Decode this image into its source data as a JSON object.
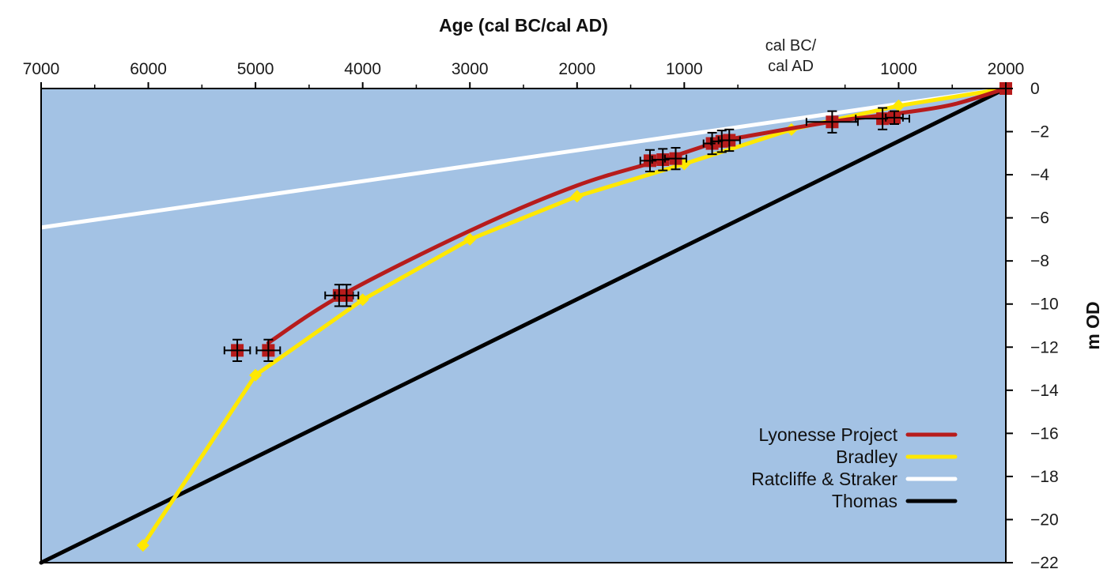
{
  "chart_data": {
    "type": "line",
    "xlabel": "Age (cal BC/cal AD)",
    "ylabel": "m OD",
    "era_label_line1": "cal BC/",
    "era_label_line2": "cal AD",
    "x_axis_position": "top",
    "y_axis_position": "right",
    "xlim": [
      -7000,
      2000
    ],
    "ylim": [
      -22,
      0
    ],
    "x_ticks": [
      {
        "value": -7000,
        "label": "7000"
      },
      {
        "value": -6000,
        "label": "6000"
      },
      {
        "value": -5000,
        "label": "5000"
      },
      {
        "value": -4000,
        "label": "4000"
      },
      {
        "value": -3000,
        "label": "3000"
      },
      {
        "value": -2000,
        "label": "2000"
      },
      {
        "value": -1000,
        "label": "1000"
      },
      {
        "value": 1000,
        "label": "1000"
      },
      {
        "value": 2000,
        "label": "2000"
      }
    ],
    "y_ticks": [
      {
        "value": 0,
        "label": "0"
      },
      {
        "value": -2,
        "label": "−2"
      },
      {
        "value": -4,
        "label": "−4"
      },
      {
        "value": -6,
        "label": "−6"
      },
      {
        "value": -8,
        "label": "−8"
      },
      {
        "value": -10,
        "label": "−10"
      },
      {
        "value": -12,
        "label": "−12"
      },
      {
        "value": -14,
        "label": "−14"
      },
      {
        "value": -16,
        "label": "−16"
      },
      {
        "value": -18,
        "label": "−18"
      },
      {
        "value": -20,
        "label": "−20"
      },
      {
        "value": -22,
        "label": "−22"
      }
    ],
    "grid": false,
    "legend_position": "bottom-right",
    "colors": {
      "plot_background": "#a3c2e4",
      "lyonesse": "#b71c1c",
      "bradley": "#ffe800",
      "ratcliffe": "#ffffff",
      "thomas": "#000000",
      "error_bars": "#000000"
    },
    "series": [
      {
        "name": "Lyonesse Project",
        "color": "#b71c1c",
        "marker": "square",
        "curve": [
          {
            "x": -4880,
            "y": -11.8
          },
          {
            "x": -4200,
            "y": -9.6
          },
          {
            "x": -3000,
            "y": -6.6
          },
          {
            "x": -2000,
            "y": -4.5
          },
          {
            "x": -1200,
            "y": -3.3
          },
          {
            "x": -700,
            "y": -2.5
          },
          {
            "x": -400,
            "y": -2.2
          },
          {
            "x": 0,
            "y": -1.85
          },
          {
            "x": 500,
            "y": -1.45
          },
          {
            "x": 1000,
            "y": -1.15
          },
          {
            "x": 1500,
            "y": -0.75
          },
          {
            "x": 2000,
            "y": 0
          }
        ],
        "points": [
          {
            "x": -5170,
            "y": -12.15,
            "x_err": 120,
            "y_err": 0.5
          },
          {
            "x": -4880,
            "y": -12.15,
            "x_err": 110,
            "y_err": 0.5
          },
          {
            "x": -4220,
            "y": -9.6,
            "x_err": 130,
            "y_err": 0.5
          },
          {
            "x": -4150,
            "y": -9.6,
            "x_err": 110,
            "y_err": 0.5
          },
          {
            "x": -1320,
            "y": -3.35,
            "x_err": 90,
            "y_err": 0.5
          },
          {
            "x": -1200,
            "y": -3.3,
            "x_err": 100,
            "y_err": 0.5
          },
          {
            "x": -1080,
            "y": -3.25,
            "x_err": 100,
            "y_err": 0.5
          },
          {
            "x": -740,
            "y": -2.55,
            "x_err": 80,
            "y_err": 0.5
          },
          {
            "x": -650,
            "y": -2.45,
            "x_err": 100,
            "y_err": 0.5
          },
          {
            "x": -580,
            "y": -2.4,
            "x_err": 100,
            "y_err": 0.5
          },
          {
            "x": 380,
            "y": -1.55,
            "x_err": 240,
            "y_err": 0.5
          },
          {
            "x": 850,
            "y": -1.4,
            "x_err": 250,
            "y_err": 0.5
          },
          {
            "x": 960,
            "y": -1.35,
            "x_err": 80,
            "y_err": 0.3
          },
          {
            "x": 2000,
            "y": 0,
            "x_err": 0,
            "y_err": 0
          }
        ]
      },
      {
        "name": "Bradley",
        "color": "#ffe800",
        "marker": "diamond",
        "points": [
          {
            "x": -6050,
            "y": -21.2
          },
          {
            "x": -5000,
            "y": -13.3
          },
          {
            "x": -4000,
            "y": -9.8
          },
          {
            "x": -3000,
            "y": -7.0
          },
          {
            "x": -2000,
            "y": -5.0
          },
          {
            "x": -1000,
            "y": -3.5
          },
          {
            "x": 0,
            "y": -1.9
          },
          {
            "x": 1000,
            "y": -0.8
          },
          {
            "x": 2000,
            "y": 0
          }
        ]
      },
      {
        "name": "Ratcliffe & Straker",
        "color": "#ffffff",
        "marker": "none",
        "points": [
          {
            "x": -7000,
            "y": -6.45
          },
          {
            "x": 2000,
            "y": 0
          }
        ]
      },
      {
        "name": "Thomas",
        "color": "#000000",
        "marker": "none",
        "points": [
          {
            "x": -7000,
            "y": -22
          },
          {
            "x": 2000,
            "y": 0
          }
        ]
      }
    ]
  }
}
